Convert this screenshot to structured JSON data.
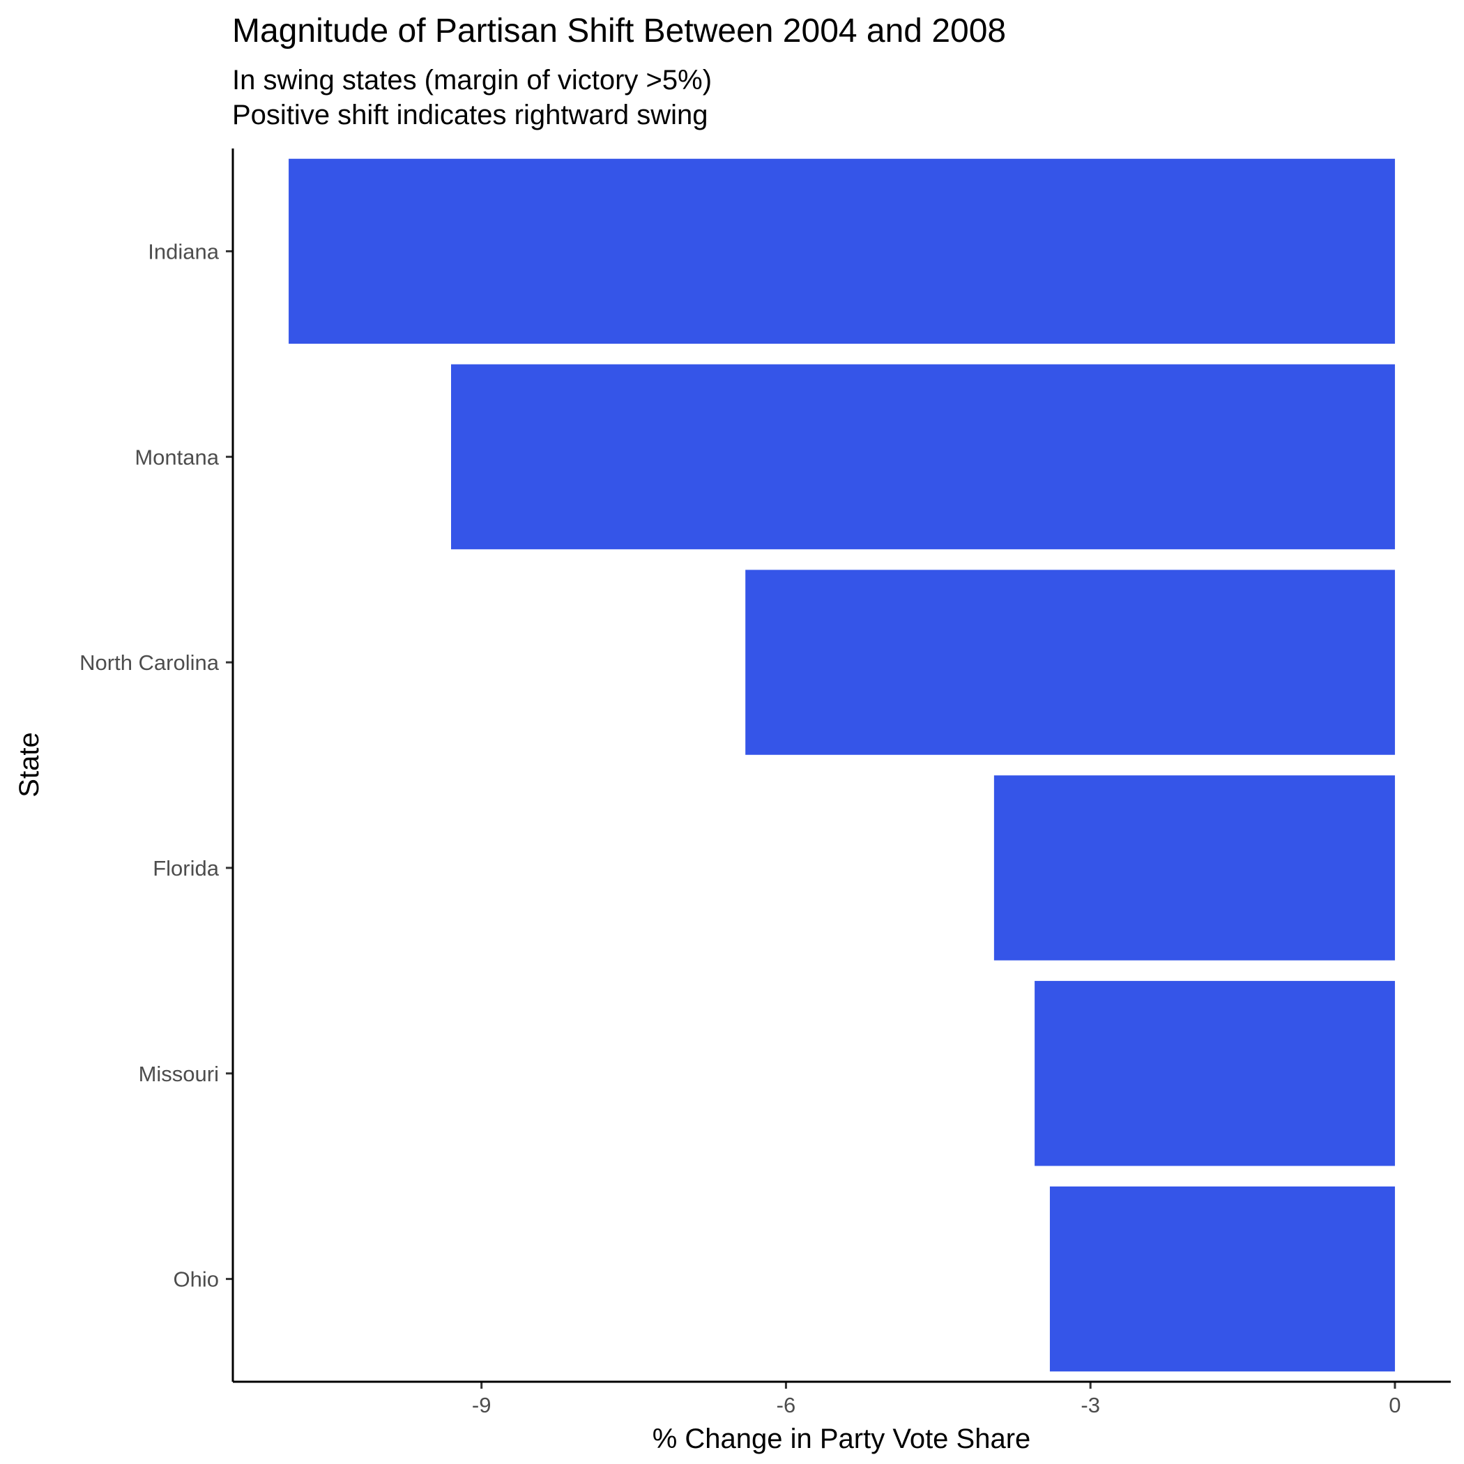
{
  "chart_data": {
    "type": "bar",
    "orientation": "horizontal",
    "title": "Magnitude of Partisan Shift Between 2004 and 2008",
    "subtitle_lines": [
      "In swing states (margin of victory >5%)",
      "Positive shift indicates rightward swing"
    ],
    "xlabel": "% Change in Party Vote Share",
    "ylabel": "State",
    "categories": [
      "Indiana",
      "Montana",
      "North Carolina",
      "Florida",
      "Missouri",
      "Ohio"
    ],
    "values": [
      -10.9,
      -9.3,
      -6.4,
      -3.95,
      -3.55,
      -3.4
    ],
    "xlim": [
      -11.45,
      0.55
    ],
    "xticks": [
      -9,
      -6,
      -3,
      0
    ],
    "xtick_labels": [
      "-9",
      "-6",
      "-3",
      "0"
    ],
    "bar_color": "#3555E8",
    "grid": false,
    "legend": "none"
  }
}
